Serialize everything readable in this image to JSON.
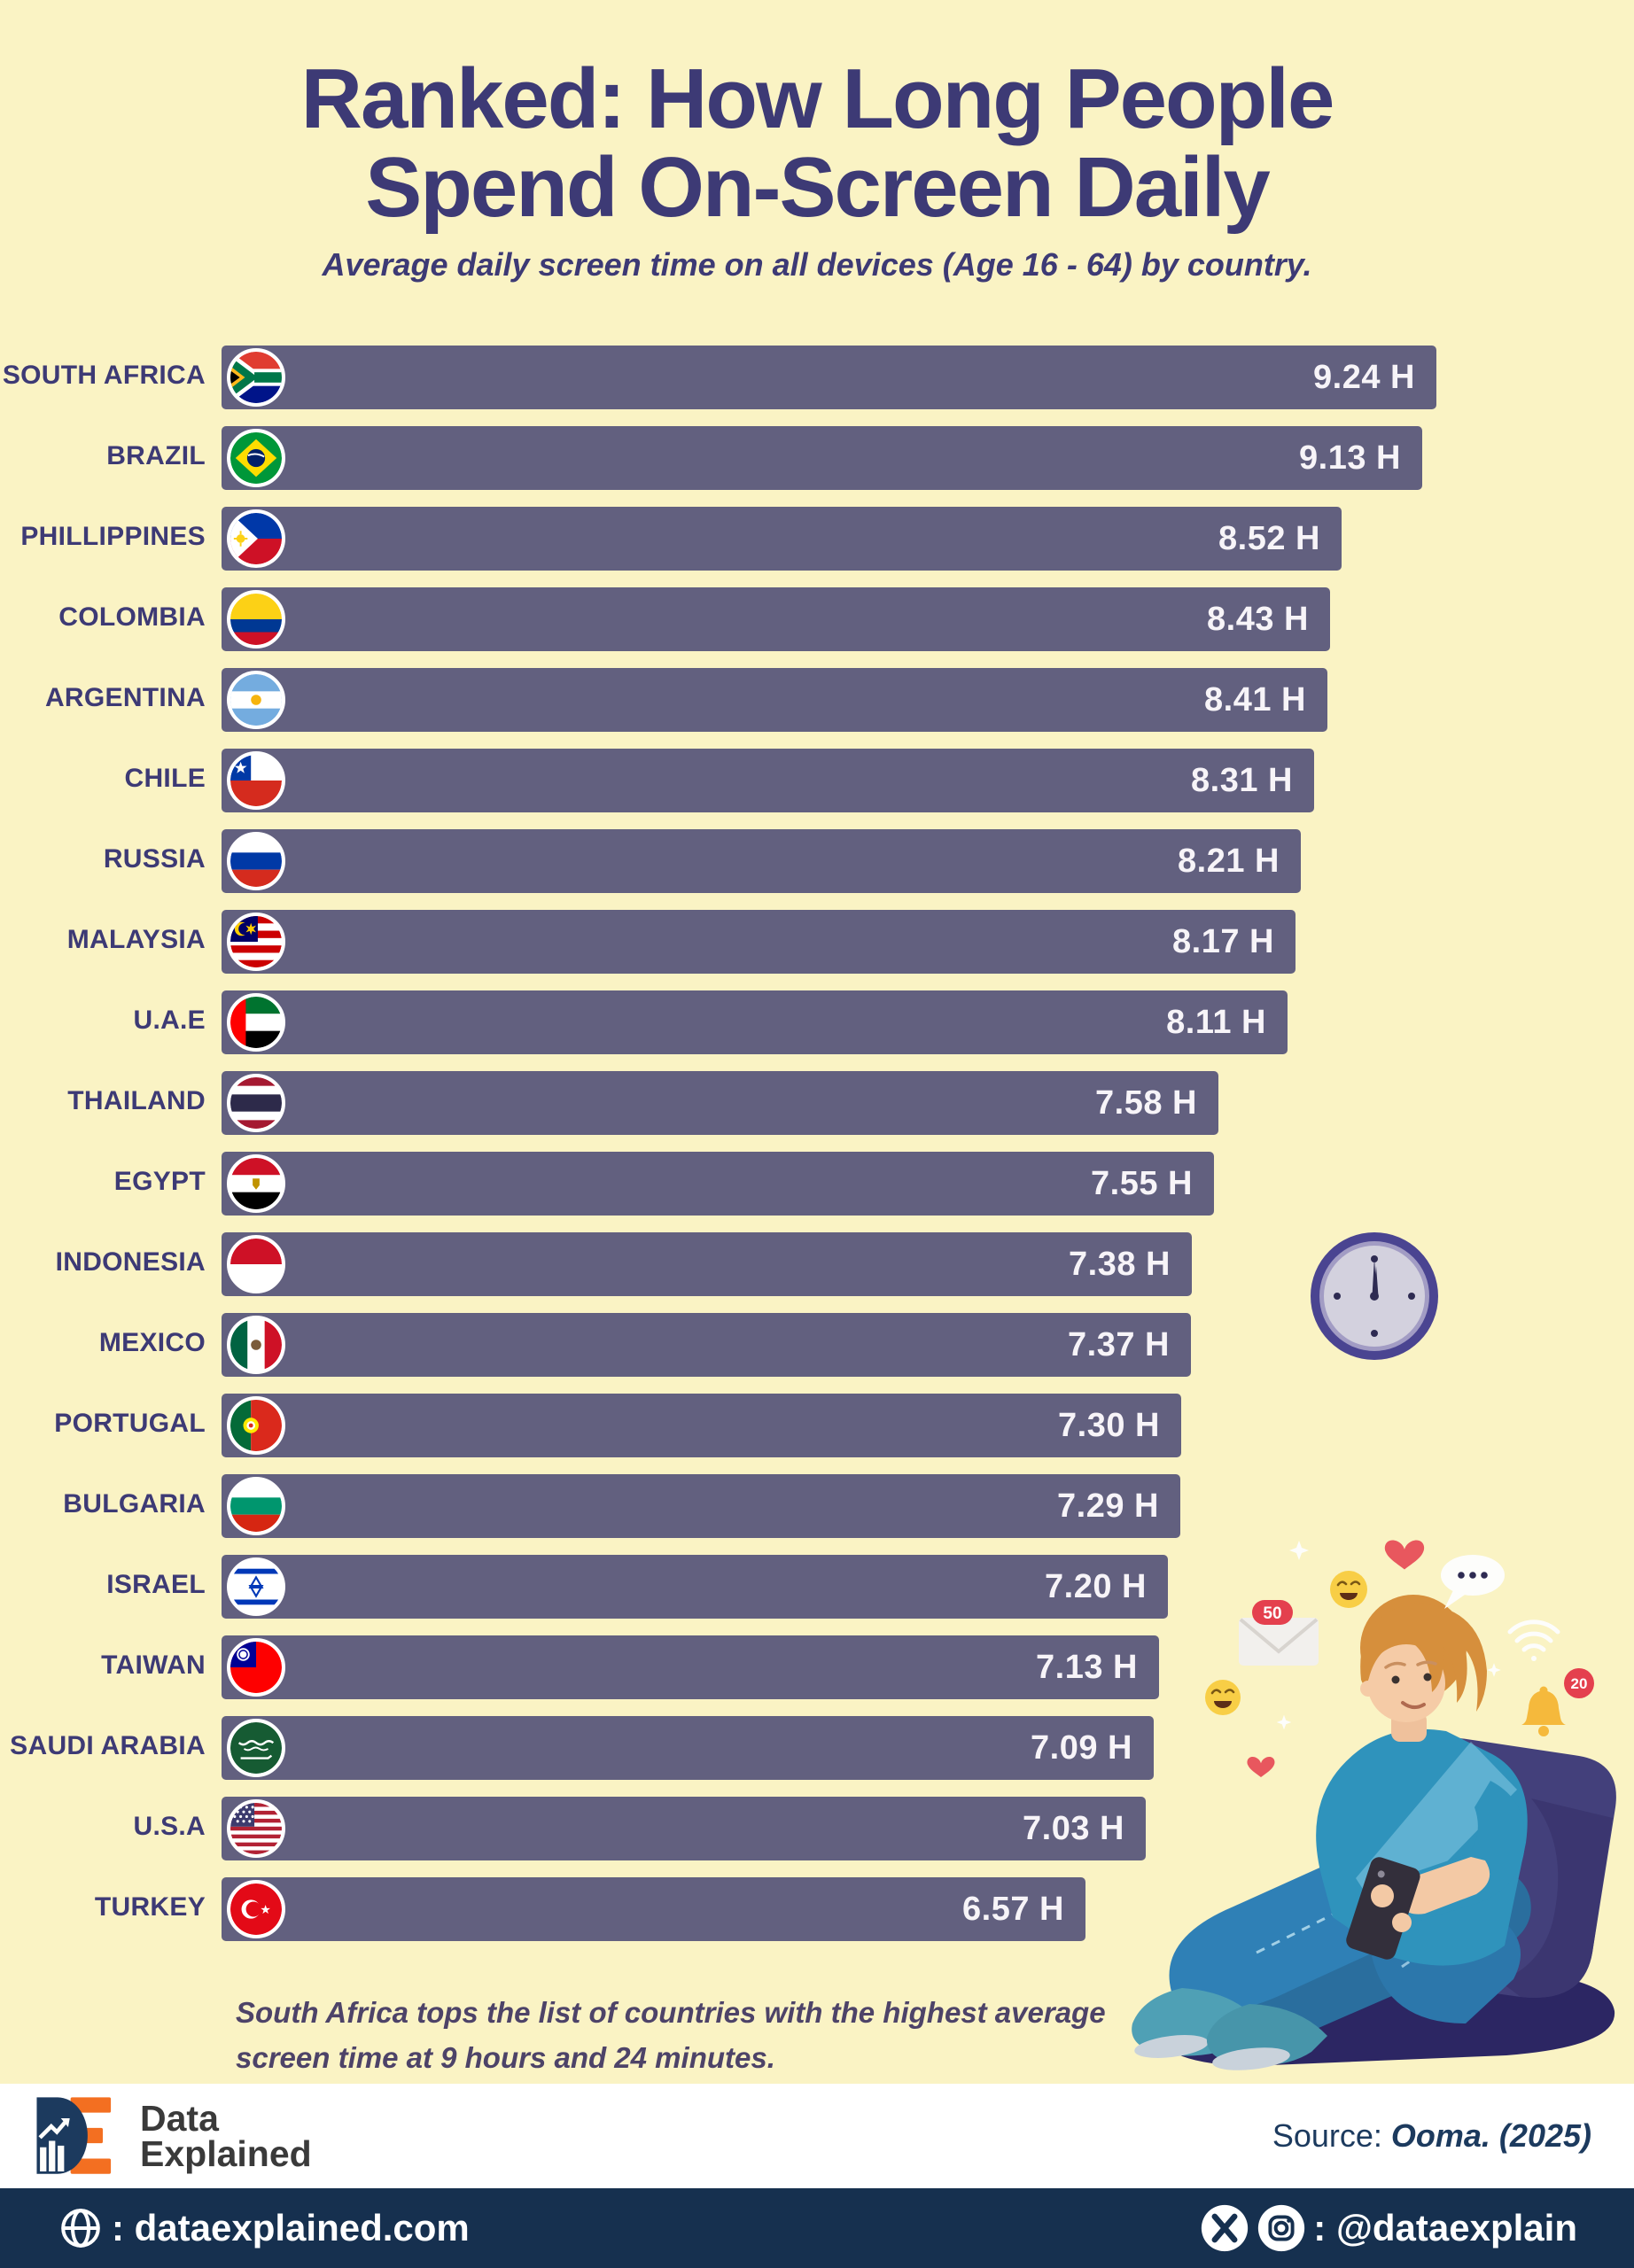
{
  "title": {
    "line1": "Ranked: How Long People",
    "line2": "Spend On-Screen Daily"
  },
  "subtitle": "Average daily screen time on all devices (Age 16 - 64) by country.",
  "chart_data": {
    "type": "bar",
    "orientation": "horizontal",
    "title": "Ranked: How Long People Spend On-Screen Daily",
    "subtitle": "Average daily screen time on all devices (Age 16 - 64) by country.",
    "unit": "hours per day",
    "max_value": 9.24,
    "value_suffix": " H",
    "categories": [
      "SOUTH AFRICA",
      "BRAZIL",
      "PHILLIPPINES",
      "COLOMBIA",
      "ARGENTINA",
      "CHILE",
      "RUSSIA",
      "MALAYSIA",
      "U.A.E",
      "THAILAND",
      "EGYPT",
      "INDONESIA",
      "MEXICO",
      "PORTUGAL",
      "BULGARIA",
      "ISRAEL",
      "TAIWAN",
      "SAUDI ARABIA",
      "U.S.A",
      "TURKEY"
    ],
    "values": [
      9.24,
      9.13,
      8.52,
      8.43,
      8.41,
      8.31,
      8.21,
      8.17,
      8.11,
      7.58,
      7.55,
      7.38,
      7.37,
      7.3,
      7.29,
      7.2,
      7.13,
      7.09,
      7.03,
      6.57
    ],
    "value_labels": [
      "9.24 H",
      "9.13 H",
      "8.52 H",
      "8.43 H",
      "8.41 H",
      "8.31 H",
      "8.21 H",
      "8.17 H",
      "8.11 H",
      "7.58 H",
      "7.55 H",
      "7.38 H",
      "7.37 H",
      "7.30 H",
      "7.29 H",
      "7.20 H",
      "7.13 H",
      "7.09 H",
      "7.03 H",
      "6.57 H"
    ],
    "flag_icons": [
      "flag-south-africa",
      "flag-brazil",
      "flag-philippines",
      "flag-colombia",
      "flag-argentina",
      "flag-chile",
      "flag-russia",
      "flag-malaysia",
      "flag-uae",
      "flag-thailand",
      "flag-egypt",
      "flag-indonesia",
      "flag-mexico",
      "flag-portugal",
      "flag-bulgaria",
      "flag-israel",
      "flag-taiwan",
      "flag-saudi-arabia",
      "flag-usa",
      "flag-turkey"
    ],
    "grid": false,
    "legend": false
  },
  "note": "South Africa tops the list of countries with the highest average screen time at 9 hours and 24 minutes.",
  "footer": {
    "logo_line1": "Data",
    "logo_line2": "Explained",
    "source_label": "Source:",
    "source_value": "Ooma. (2025)"
  },
  "bottom_bar": {
    "website": ": dataexplained.com",
    "social": ": @dataexplain"
  },
  "decor_badges": {
    "mail_count": "50",
    "bell_count": "20"
  },
  "colors": {
    "background": "#FAF3C4",
    "bar": "#62607F",
    "bar_text": "#F7F4F8",
    "heading": "#3D3A75",
    "note_text": "#4D4368",
    "footer_band": "#FFFFFF",
    "footer_bar": "#16304F",
    "logo_orange": "#F36F21",
    "logo_navy": "#1C3A5E",
    "source_text": "#1C3A5E"
  }
}
